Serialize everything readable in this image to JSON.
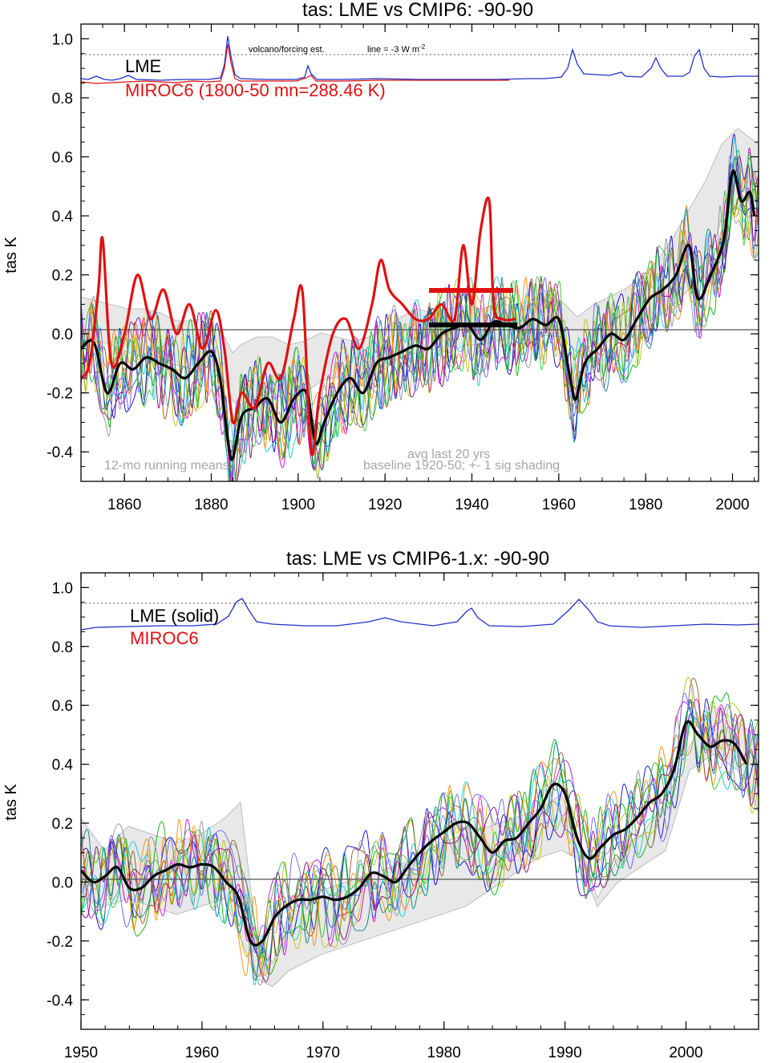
{
  "chart_data": [
    {
      "type": "line",
      "title": "tas: LME vs CMIP6: -90-90",
      "ylabel": "tas K",
      "xlim": [
        1850,
        2006
      ],
      "ylim": [
        -0.5,
        1.05
      ],
      "xticks": [
        "1860",
        "1880",
        "1900",
        "1920",
        "1940",
        "1960",
        "1980",
        "2000"
      ],
      "yticks": [
        "1.0",
        "0.8",
        "0.6",
        "0.4",
        "0.2",
        "0.0",
        "-0.2",
        "-0.4"
      ],
      "legend": [
        "LME",
        "MIROC6 (1800-50 mn=288.46 K)"
      ],
      "annotations": {
        "forcing_label": "volcano/forcing est.",
        "forcing_line_label": "line = -3 W m",
        "forcing_line_sup": "-2",
        "running_mean": "12-mo running means",
        "avg_last": "avg last 20 yrs",
        "baseline": "baseline 1920-50; +- 1 sig shading"
      },
      "series": [
        {
          "name": "LME",
          "color": "#000000",
          "x": [
            1850,
            1853,
            1856,
            1859,
            1862,
            1865,
            1868,
            1871,
            1874,
            1877,
            1880,
            1882,
            1884,
            1885,
            1887,
            1890,
            1893,
            1896,
            1899,
            1902,
            1904,
            1906,
            1909,
            1912,
            1915,
            1918,
            1921,
            1924,
            1927,
            1930,
            1933,
            1936,
            1939,
            1942,
            1945,
            1948,
            1951,
            1954,
            1957,
            1960,
            1962,
            1963,
            1964,
            1966,
            1969,
            1972,
            1975,
            1978,
            1981,
            1984,
            1987,
            1990,
            1992,
            1995,
            1998,
            2000,
            2002,
            2004,
            2005
          ],
          "y": [
            -0.05,
            -0.03,
            -0.2,
            -0.1,
            -0.12,
            -0.08,
            -0.1,
            -0.12,
            -0.15,
            -0.1,
            -0.06,
            -0.15,
            -0.38,
            -0.42,
            -0.28,
            -0.25,
            -0.22,
            -0.3,
            -0.22,
            -0.2,
            -0.37,
            -0.3,
            -0.2,
            -0.15,
            -0.2,
            -0.1,
            -0.08,
            -0.06,
            -0.04,
            -0.05,
            0.0,
            0.02,
            0.03,
            -0.02,
            0.04,
            0.03,
            0.02,
            0.05,
            0.03,
            0.05,
            -0.1,
            -0.18,
            -0.22,
            -0.1,
            -0.05,
            0.0,
            -0.02,
            0.05,
            0.12,
            0.15,
            0.2,
            0.3,
            0.12,
            0.2,
            0.32,
            0.55,
            0.45,
            0.48,
            0.4
          ]
        },
        {
          "name": "MIROC6 (1800-50 mn=288.46 K)",
          "color": "#e01010",
          "x": [
            1850,
            1852,
            1854,
            1855,
            1857,
            1860,
            1863,
            1866,
            1869,
            1872,
            1875,
            1878,
            1881,
            1883,
            1885,
            1887,
            1890,
            1893,
            1896,
            1899,
            1901,
            1903,
            1905,
            1908,
            1911,
            1914,
            1917,
            1919,
            1921,
            1924,
            1927,
            1930,
            1933,
            1936,
            1938,
            1940,
            1942,
            1944,
            1945,
            1947,
            1950
          ],
          "y": [
            -0.15,
            -0.1,
            0.15,
            0.32,
            -0.1,
            0.0,
            0.2,
            0.05,
            0.15,
            0.0,
            0.1,
            -0.05,
            0.08,
            -0.05,
            -0.3,
            -0.2,
            -0.25,
            -0.1,
            -0.15,
            0.05,
            0.14,
            -0.4,
            -0.2,
            0.0,
            0.05,
            -0.05,
            0.1,
            0.25,
            0.15,
            0.1,
            0.05,
            0.05,
            0.1,
            0.05,
            0.3,
            0.1,
            0.35,
            0.45,
            0.1,
            0.05,
            0.05
          ]
        }
      ]
    },
    {
      "type": "line",
      "title": "tas: LME vs CMIP6-1.x: -90-90",
      "ylabel": "tas K",
      "xlim": [
        1950,
        2006
      ],
      "ylim": [
        -0.5,
        1.05
      ],
      "xticks": [
        "1950",
        "1960",
        "1970",
        "1980",
        "1990",
        "2000"
      ],
      "yticks": [
        "1.0",
        "0.8",
        "0.6",
        "0.4",
        "0.2",
        "0.0",
        "-0.2",
        "-0.4"
      ],
      "legend": [
        "LME (solid)",
        "MIROC6"
      ],
      "series": [
        {
          "name": "LME (solid)",
          "color": "#000000",
          "x": [
            1950,
            1951,
            1952,
            1953,
            1954,
            1955,
            1956,
            1957,
            1958,
            1959,
            1960,
            1961,
            1962,
            1963,
            1964,
            1965,
            1966,
            1967,
            1968,
            1969,
            1970,
            1971,
            1972,
            1973,
            1974,
            1975,
            1976,
            1977,
            1978,
            1979,
            1980,
            1981,
            1982,
            1983,
            1984,
            1985,
            1986,
            1987,
            1988,
            1989,
            1990,
            1991,
            1992,
            1993,
            1994,
            1995,
            1996,
            1997,
            1998,
            1999,
            2000,
            2001,
            2002,
            2003,
            2004,
            2005
          ],
          "y": [
            0.04,
            0.0,
            0.02,
            0.05,
            -0.02,
            -0.02,
            0.02,
            0.04,
            0.06,
            0.05,
            0.06,
            0.05,
            0.0,
            -0.05,
            -0.2,
            -0.2,
            -0.12,
            -0.08,
            -0.06,
            -0.06,
            -0.05,
            -0.06,
            -0.05,
            -0.02,
            0.03,
            0.02,
            0.0,
            0.05,
            0.1,
            0.14,
            0.17,
            0.2,
            0.2,
            0.15,
            0.1,
            0.14,
            0.15,
            0.2,
            0.25,
            0.33,
            0.3,
            0.15,
            0.08,
            0.12,
            0.16,
            0.18,
            0.22,
            0.27,
            0.3,
            0.38,
            0.54,
            0.5,
            0.46,
            0.48,
            0.47,
            0.4
          ]
        },
        {
          "name": "MIROC6",
          "color": "#e01010",
          "x": [],
          "y": []
        }
      ]
    }
  ]
}
